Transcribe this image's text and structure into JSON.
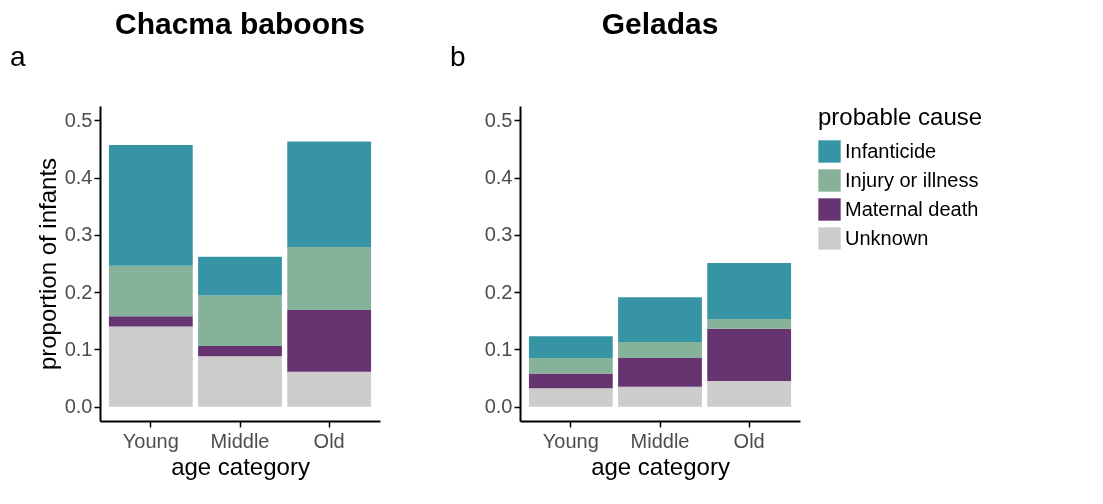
{
  "chart_data": [
    {
      "type": "bar",
      "title": "Chacma baboons",
      "annotations": [
        "a"
      ],
      "xlabel": "age category",
      "ylabel": "proportion of infants",
      "categories": [
        "Young",
        "Middle",
        "Old"
      ],
      "stacked": true,
      "legend": false,
      "grid": false,
      "ylim": [
        -0.025,
        0.525
      ],
      "yticks": [
        {
          "value": 0,
          "label": "0.0"
        },
        {
          "value": 0.1,
          "label": "0.1"
        },
        {
          "value": 0.2,
          "label": "0.2"
        },
        {
          "value": 0.3,
          "label": "0.3"
        },
        {
          "value": 0.4,
          "label": "0.4"
        },
        {
          "value": 0.5,
          "label": "0.5"
        }
      ],
      "series": [
        {
          "color": "#cccccc",
          "values": [
            0.14,
            0.088,
            0.061
          ]
        },
        {
          "color": "#673472",
          "values": [
            0.018,
            0.018,
            0.108
          ]
        },
        {
          "color": "#86b29a",
          "values": [
            0.088,
            0.088,
            0.11
          ]
        },
        {
          "color": "#3794a4",
          "values": [
            0.211,
            0.068,
            0.184
          ]
        }
      ]
    },
    {
      "type": "bar",
      "title": "Geladas",
      "annotations": [
        "b"
      ],
      "xlabel": "age category",
      "legend_title": "probable cause",
      "categories": [
        "Young",
        "Middle",
        "Old"
      ],
      "stacked": true,
      "legend": "right",
      "grid": false,
      "ylim": [
        -0.025,
        0.525
      ],
      "yticks": [
        {
          "value": 0,
          "label": "0.0"
        },
        {
          "value": 0.1,
          "label": "0.1"
        },
        {
          "value": 0.2,
          "label": "0.2"
        },
        {
          "value": 0.3,
          "label": "0.3"
        },
        {
          "value": 0.4,
          "label": "0.4"
        },
        {
          "value": 0.5,
          "label": "0.5"
        }
      ],
      "series": [
        {
          "name": "Unknown",
          "color": "#cccccc",
          "values": [
            0.032,
            0.035,
            0.045
          ]
        },
        {
          "name": "Maternal death",
          "color": "#673472",
          "values": [
            0.026,
            0.05,
            0.091
          ]
        },
        {
          "name": "Injury or illness",
          "color": "#86b29a",
          "values": [
            0.027,
            0.028,
            0.017
          ]
        },
        {
          "name": "Infanticide",
          "color": "#3794a4",
          "values": [
            0.038,
            0.078,
            0.098
          ]
        }
      ]
    }
  ]
}
